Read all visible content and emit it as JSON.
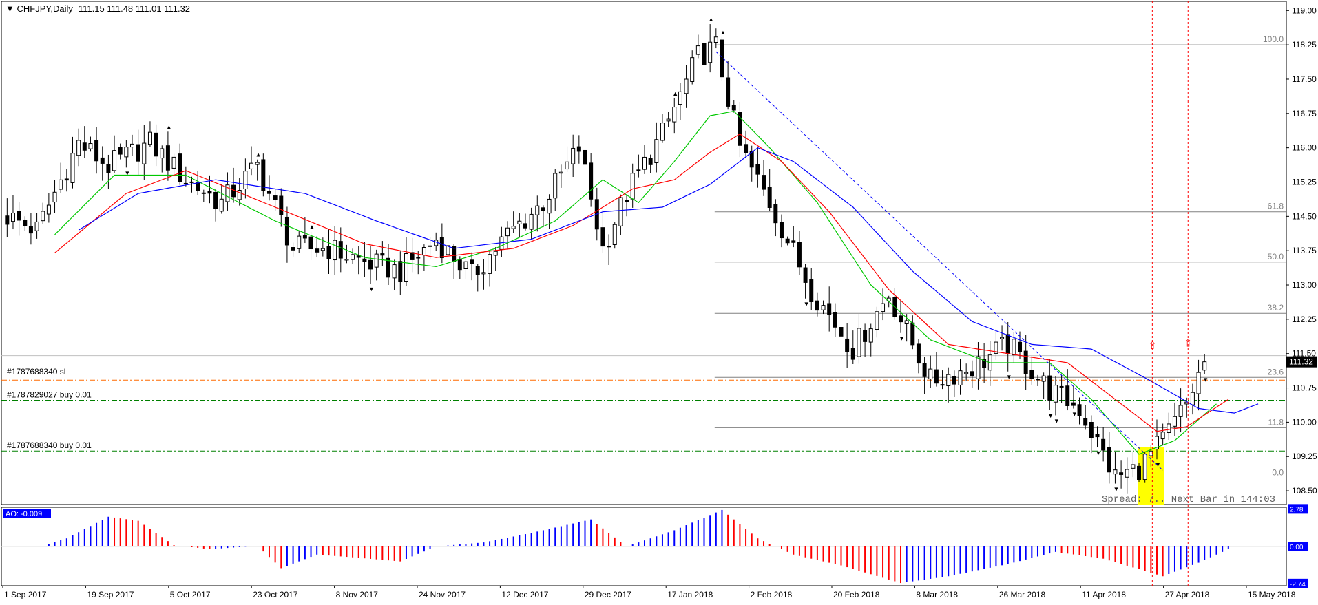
{
  "header": {
    "symbol": "CHFJPY,Daily",
    "ohlc": "111.15 111.48 111.01 111.32"
  },
  "status": {
    "spread_text": "Spread: 7.. Next Bar in 144:03"
  },
  "orders": [
    {
      "label": "#1787688340 sl",
      "price": 110.92,
      "color": "#ff6a00"
    },
    {
      "label": "#1787829027 buy 0.01",
      "price": 110.48,
      "color": "#008000"
    },
    {
      "label": "#1787688340 buy 0.01",
      "price": 109.37,
      "color": "#008000"
    }
  ],
  "chart_data": [
    {
      "type": "candlestick",
      "title": "CHFJPY,Daily",
      "ylim": [
        108.2,
        119.2
      ],
      "y_ticks": [
        "119.00",
        "118.25",
        "117.50",
        "116.75",
        "116.00",
        "115.25",
        "114.50",
        "113.75",
        "113.00",
        "112.25",
        "111.50",
        "110.75",
        "110.00",
        "109.25",
        "108.50"
      ],
      "current_price": "111.32",
      "x_labels": [
        "1 Sep 2017",
        "19 Sep 2017",
        "5 Oct 2017",
        "23 Oct 2017",
        "8 Nov 2017",
        "24 Nov 2017",
        "12 Dec 2017",
        "29 Dec 2017",
        "17 Jan 2018",
        "2 Feb 2018",
        "20 Feb 2018",
        "8 Mar 2018",
        "26 Mar 2018",
        "11 Apr 2018",
        "27 Apr 2018",
        "15 May 2018"
      ],
      "close_path": [
        {
          "i": 0,
          "v": 114.5
        },
        {
          "i": 5,
          "v": 114.2
        },
        {
          "i": 12,
          "v": 116.1
        },
        {
          "i": 17,
          "v": 115.6
        },
        {
          "i": 24,
          "v": 116.1
        },
        {
          "i": 30,
          "v": 115.3
        },
        {
          "i": 36,
          "v": 114.8
        },
        {
          "i": 42,
          "v": 115.6
        },
        {
          "i": 48,
          "v": 113.8
        },
        {
          "i": 54,
          "v": 113.8
        },
        {
          "i": 60,
          "v": 113.5
        },
        {
          "i": 66,
          "v": 113.3
        },
        {
          "i": 72,
          "v": 114.0
        },
        {
          "i": 78,
          "v": 113.2
        },
        {
          "i": 84,
          "v": 114.1
        },
        {
          "i": 90,
          "v": 114.8
        },
        {
          "i": 96,
          "v": 116.0
        },
        {
          "i": 100,
          "v": 113.8
        },
        {
          "i": 104,
          "v": 115.0
        },
        {
          "i": 110,
          "v": 116.3
        },
        {
          "i": 116,
          "v": 118.0
        },
        {
          "i": 119,
          "v": 118.2
        },
        {
          "i": 123,
          "v": 116.0
        },
        {
          "i": 128,
          "v": 114.8
        },
        {
          "i": 135,
          "v": 112.9
        },
        {
          "i": 142,
          "v": 111.6
        },
        {
          "i": 148,
          "v": 112.8
        },
        {
          "i": 155,
          "v": 110.9
        },
        {
          "i": 162,
          "v": 111.2
        },
        {
          "i": 168,
          "v": 111.7
        },
        {
          "i": 175,
          "v": 110.7
        },
        {
          "i": 180,
          "v": 110.3
        },
        {
          "i": 186,
          "v": 108.8
        },
        {
          "i": 190,
          "v": 109.0
        },
        {
          "i": 194,
          "v": 109.6
        },
        {
          "i": 198,
          "v": 110.4
        },
        {
          "i": 201,
          "v": 111.32
        }
      ],
      "moving_averages": [
        {
          "color": "#00c800",
          "points": [
            {
              "i": 8,
              "v": 114.1
            },
            {
              "i": 18,
              "v": 115.4
            },
            {
              "i": 30,
              "v": 115.4
            },
            {
              "i": 45,
              "v": 114.4
            },
            {
              "i": 60,
              "v": 113.6
            },
            {
              "i": 72,
              "v": 113.4
            },
            {
              "i": 82,
              "v": 113.8
            },
            {
              "i": 92,
              "v": 114.4
            },
            {
              "i": 100,
              "v": 115.3
            },
            {
              "i": 106,
              "v": 114.8
            },
            {
              "i": 112,
              "v": 115.7
            },
            {
              "i": 118,
              "v": 116.7
            },
            {
              "i": 122,
              "v": 116.8
            },
            {
              "i": 128,
              "v": 116.0
            },
            {
              "i": 136,
              "v": 114.8
            },
            {
              "i": 145,
              "v": 113.0
            },
            {
              "i": 155,
              "v": 111.8
            },
            {
              "i": 165,
              "v": 111.3
            },
            {
              "i": 175,
              "v": 111.3
            },
            {
              "i": 182,
              "v": 110.5
            },
            {
              "i": 190,
              "v": 109.3
            },
            {
              "i": 196,
              "v": 109.6
            },
            {
              "i": 203,
              "v": 110.4
            }
          ]
        },
        {
          "color": "#ff0000",
          "points": [
            {
              "i": 8,
              "v": 113.7
            },
            {
              "i": 20,
              "v": 115.0
            },
            {
              "i": 30,
              "v": 115.5
            },
            {
              "i": 45,
              "v": 114.7
            },
            {
              "i": 60,
              "v": 113.9
            },
            {
              "i": 72,
              "v": 113.6
            },
            {
              "i": 85,
              "v": 113.8
            },
            {
              "i": 95,
              "v": 114.3
            },
            {
              "i": 105,
              "v": 115.1
            },
            {
              "i": 112,
              "v": 115.3
            },
            {
              "i": 118,
              "v": 115.9
            },
            {
              "i": 123,
              "v": 116.3
            },
            {
              "i": 130,
              "v": 115.7
            },
            {
              "i": 138,
              "v": 114.6
            },
            {
              "i": 148,
              "v": 112.9
            },
            {
              "i": 158,
              "v": 111.7
            },
            {
              "i": 168,
              "v": 111.5
            },
            {
              "i": 178,
              "v": 111.3
            },
            {
              "i": 186,
              "v": 110.5
            },
            {
              "i": 193,
              "v": 109.8
            },
            {
              "i": 198,
              "v": 109.9
            },
            {
              "i": 205,
              "v": 110.5
            }
          ]
        },
        {
          "color": "#0000ff",
          "points": [
            {
              "i": 12,
              "v": 114.2
            },
            {
              "i": 22,
              "v": 115.0
            },
            {
              "i": 35,
              "v": 115.3
            },
            {
              "i": 50,
              "v": 115.0
            },
            {
              "i": 62,
              "v": 114.4
            },
            {
              "i": 75,
              "v": 113.8
            },
            {
              "i": 88,
              "v": 114.0
            },
            {
              "i": 100,
              "v": 114.6
            },
            {
              "i": 110,
              "v": 114.7
            },
            {
              "i": 118,
              "v": 115.2
            },
            {
              "i": 126,
              "v": 116.0
            },
            {
              "i": 132,
              "v": 115.7
            },
            {
              "i": 142,
              "v": 114.7
            },
            {
              "i": 152,
              "v": 113.3
            },
            {
              "i": 162,
              "v": 112.2
            },
            {
              "i": 172,
              "v": 111.7
            },
            {
              "i": 182,
              "v": 111.6
            },
            {
              "i": 192,
              "v": 110.9
            },
            {
              "i": 200,
              "v": 110.3
            },
            {
              "i": 206,
              "v": 110.2
            },
            {
              "i": 210,
              "v": 110.4
            }
          ]
        }
      ],
      "fibonacci": [
        {
          "label": "100.0",
          "value": 118.25
        },
        {
          "label": "61.8",
          "value": 114.6
        },
        {
          "label": "50.0",
          "value": 113.5
        },
        {
          "label": "38.2",
          "value": 112.38
        },
        {
          "label": "23.6",
          "value": 110.98
        },
        {
          "label": "11.8",
          "value": 109.88
        },
        {
          "label": "0.0",
          "value": 108.78
        }
      ],
      "trendline": {
        "from": {
          "i": 119,
          "v": 118.1
        },
        "to": {
          "i": 194,
          "v": 108.95
        }
      },
      "vertical_markers": [
        192,
        198
      ],
      "arrows": [
        {
          "i": 192,
          "v": 111.6
        },
        {
          "i": 198,
          "v": 111.65
        }
      ],
      "highlight": {
        "i_from": 190,
        "i_to": 194,
        "v_from": 108.2,
        "v_to": 109.45
      }
    },
    {
      "type": "bar",
      "title": "AO",
      "label": "AO: -0.009",
      "y_ticks": [
        "2.78",
        "0.00",
        "-2.74"
      ],
      "ylim": [
        -2.9,
        2.9
      ],
      "histogram_profile": [
        {
          "i": 0,
          "v": 0
        },
        {
          "i": 6,
          "v": 0.05
        },
        {
          "i": 10,
          "v": 0.6
        },
        {
          "i": 17,
          "v": 2.2
        },
        {
          "i": 22,
          "v": 1.9
        },
        {
          "i": 28,
          "v": 0.1
        },
        {
          "i": 34,
          "v": -0.2
        },
        {
          "i": 42,
          "v": 0.05
        },
        {
          "i": 46,
          "v": -1.6
        },
        {
          "i": 52,
          "v": -0.6
        },
        {
          "i": 58,
          "v": -0.8
        },
        {
          "i": 66,
          "v": -1.1
        },
        {
          "i": 72,
          "v": 0.0
        },
        {
          "i": 80,
          "v": 0.3
        },
        {
          "i": 88,
          "v": 1.0
        },
        {
          "i": 98,
          "v": 2.0
        },
        {
          "i": 104,
          "v": 0.0
        },
        {
          "i": 112,
          "v": 1.2
        },
        {
          "i": 120,
          "v": 2.7
        },
        {
          "i": 126,
          "v": 0.6
        },
        {
          "i": 132,
          "v": -0.6
        },
        {
          "i": 140,
          "v": -1.4
        },
        {
          "i": 150,
          "v": -2.7
        },
        {
          "i": 158,
          "v": -2.2
        },
        {
          "i": 168,
          "v": -1.3
        },
        {
          "i": 176,
          "v": -0.4
        },
        {
          "i": 184,
          "v": -0.9
        },
        {
          "i": 194,
          "v": -2.2
        },
        {
          "i": 200,
          "v": -1.2
        },
        {
          "i": 206,
          "v": 0.0
        }
      ]
    }
  ]
}
